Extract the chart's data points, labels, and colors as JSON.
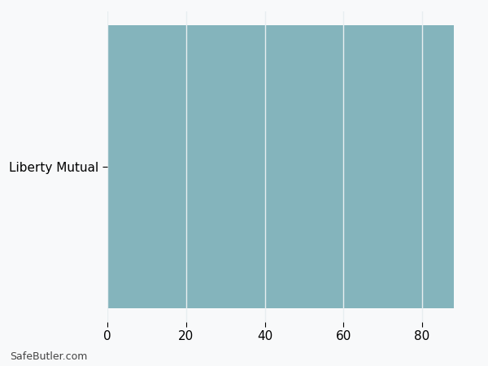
{
  "categories": [
    "Liberty Mutual"
  ],
  "values": [
    88
  ],
  "bar_color": "#84b4bc",
  "xlim": [
    0,
    93
  ],
  "xticks": [
    0,
    20,
    40,
    60,
    80
  ],
  "watermark": "SafeButler.com",
  "grid_color": "#e8eef0",
  "bg_color": "#f8f9fa",
  "bar_height": 0.97,
  "ylabel_fontsize": 11,
  "xtick_fontsize": 11,
  "watermark_fontsize": 9,
  "watermark_color": "#444444"
}
